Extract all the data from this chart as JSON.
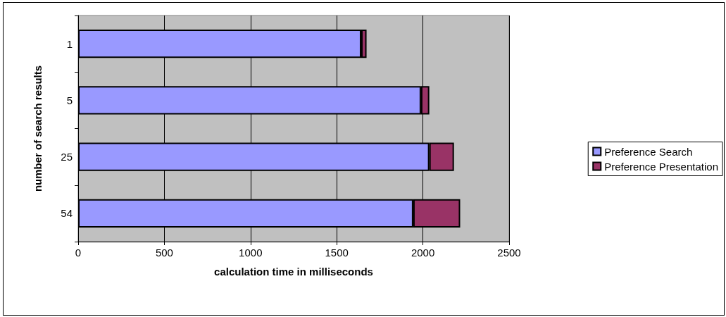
{
  "chart_data": {
    "type": "bar",
    "orientation": "horizontal",
    "stacked": true,
    "xlabel": "calculation time in milliseconds",
    "ylabel": "number of search results",
    "categories": [
      "1",
      "5",
      "25",
      "54"
    ],
    "series": [
      {
        "name": "Preference Search",
        "color": "#9999ff",
        "values": [
          1642,
          1989,
          2037,
          1944
        ]
      },
      {
        "name": "Preference Presentation",
        "color": "#993366",
        "values": [
          31,
          48,
          143,
          272
        ]
      }
    ],
    "xlim": [
      0,
      2500
    ],
    "xticks": [
      0,
      500,
      1000,
      1500,
      2000,
      2500
    ],
    "grid": "x",
    "legend": "right"
  }
}
